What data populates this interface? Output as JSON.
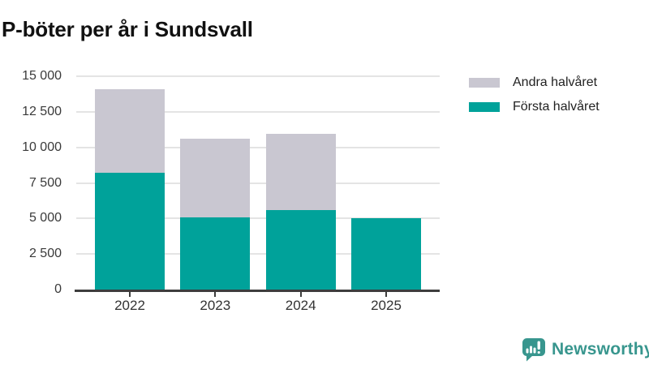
{
  "page_title": "P-böter per år i Sundsvall",
  "colors": {
    "first_half": "#00a29a",
    "second_half": "#c9c7d1",
    "grid": "#e4e4e4",
    "axis": "#3d3d3d",
    "brand": "#38968e"
  },
  "chart_data": {
    "type": "bar",
    "stacked": true,
    "title": "P-böter per år i Sundsvall",
    "categories": [
      "2022",
      "2023",
      "2024",
      "2025"
    ],
    "series": [
      {
        "name": "Första halvåret",
        "color_key": "first_half",
        "values": [
          8200,
          5100,
          5600,
          5000
        ]
      },
      {
        "name": "Andra halvåret",
        "color_key": "second_half",
        "values": [
          5900,
          5500,
          5350,
          0
        ]
      }
    ],
    "ylim": [
      0,
      15000
    ],
    "ytick_values": [
      0,
      2500,
      5000,
      7500,
      10000,
      12500,
      15000
    ],
    "ytick_labels": [
      "0",
      "2 500",
      "5 000",
      "7 500",
      "10 000",
      "12 500",
      "15 000"
    ],
    "grid": true,
    "legend_position": "top-right",
    "legend": [
      {
        "label": "Andra halvåret",
        "color_key": "second_half"
      },
      {
        "label": "Första halvåret",
        "color_key": "first_half"
      }
    ]
  },
  "footer": {
    "brand_name": "Newsworthy"
  }
}
